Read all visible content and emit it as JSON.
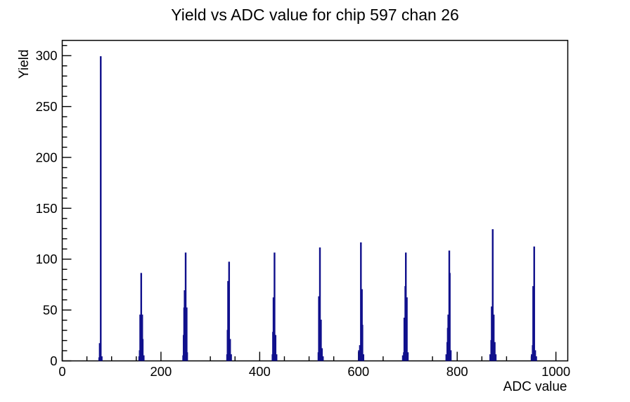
{
  "chart_data": {
    "type": "bar",
    "title": "Yield vs ADC value for chip 597 chan 26",
    "xlabel": "ADC value",
    "ylabel": "Yield",
    "xlim": [
      0,
      1024
    ],
    "ylim": [
      0,
      315
    ],
    "grid": false,
    "legend": false,
    "x_major_ticks": [
      0,
      200,
      400,
      600,
      800,
      1000
    ],
    "x_major_labels": [
      "0",
      "200",
      "400",
      "600",
      "800",
      "1000"
    ],
    "x_minor_step": 50,
    "y_major_ticks": [
      0,
      50,
      100,
      150,
      200,
      250,
      300
    ],
    "y_major_labels": [
      "0",
      "50",
      "100",
      "150",
      "200",
      "250",
      "300"
    ],
    "y_minor_step": 10,
    "line_color": "#10108c",
    "axis_color": "#000000",
    "bin_width": 1.5,
    "peaks": [
      {
        "center": 78,
        "bins": [
          [
            75,
            3
          ],
          [
            76,
            17
          ],
          [
            78,
            299
          ],
          [
            80,
            4
          ]
        ]
      },
      {
        "center": 160,
        "bins": [
          [
            156,
            4
          ],
          [
            157,
            10
          ],
          [
            158,
            45
          ],
          [
            160,
            86
          ],
          [
            162,
            45
          ],
          [
            163,
            21
          ],
          [
            165,
            5
          ]
        ]
      },
      {
        "center": 249,
        "bins": [
          [
            245,
            5
          ],
          [
            246,
            25
          ],
          [
            247,
            52
          ],
          [
            248,
            69
          ],
          [
            250,
            106
          ],
          [
            252,
            52
          ],
          [
            253,
            8
          ]
        ]
      },
      {
        "center": 338,
        "bins": [
          [
            334,
            6
          ],
          [
            335,
            30
          ],
          [
            336,
            78
          ],
          [
            338,
            97
          ],
          [
            340,
            21
          ],
          [
            342,
            6
          ]
        ]
      },
      {
        "center": 430,
        "bins": [
          [
            426,
            6
          ],
          [
            427,
            28
          ],
          [
            428,
            62
          ],
          [
            430,
            106
          ],
          [
            432,
            25
          ],
          [
            434,
            6
          ]
        ]
      },
      {
        "center": 523,
        "bins": [
          [
            519,
            8
          ],
          [
            520,
            63
          ],
          [
            522,
            111
          ],
          [
            524,
            40
          ],
          [
            526,
            12
          ],
          [
            528,
            4
          ]
        ]
      },
      {
        "center": 606,
        "bins": [
          [
            601,
            10
          ],
          [
            603,
            15
          ],
          [
            605,
            116
          ],
          [
            607,
            70
          ],
          [
            608,
            35
          ],
          [
            610,
            6
          ]
        ]
      },
      {
        "center": 696,
        "bins": [
          [
            690,
            5
          ],
          [
            692,
            8
          ],
          [
            693,
            42
          ],
          [
            695,
            73
          ],
          [
            696,
            106
          ],
          [
            698,
            62
          ],
          [
            700,
            8
          ]
        ]
      },
      {
        "center": 784,
        "bins": [
          [
            778,
            6
          ],
          [
            780,
            18
          ],
          [
            781,
            32
          ],
          [
            782,
            45
          ],
          [
            784,
            108
          ],
          [
            785,
            86
          ],
          [
            787,
            10
          ]
        ]
      },
      {
        "center": 872,
        "bins": [
          [
            867,
            6
          ],
          [
            869,
            20
          ],
          [
            870,
            53
          ],
          [
            872,
            129
          ],
          [
            874,
            45
          ],
          [
            876,
            18
          ],
          [
            878,
            6
          ]
        ]
      },
      {
        "center": 956,
        "bins": [
          [
            951,
            6
          ],
          [
            953,
            15
          ],
          [
            954,
            73
          ],
          [
            956,
            112
          ],
          [
            958,
            10
          ],
          [
            960,
            4
          ]
        ]
      }
    ]
  }
}
